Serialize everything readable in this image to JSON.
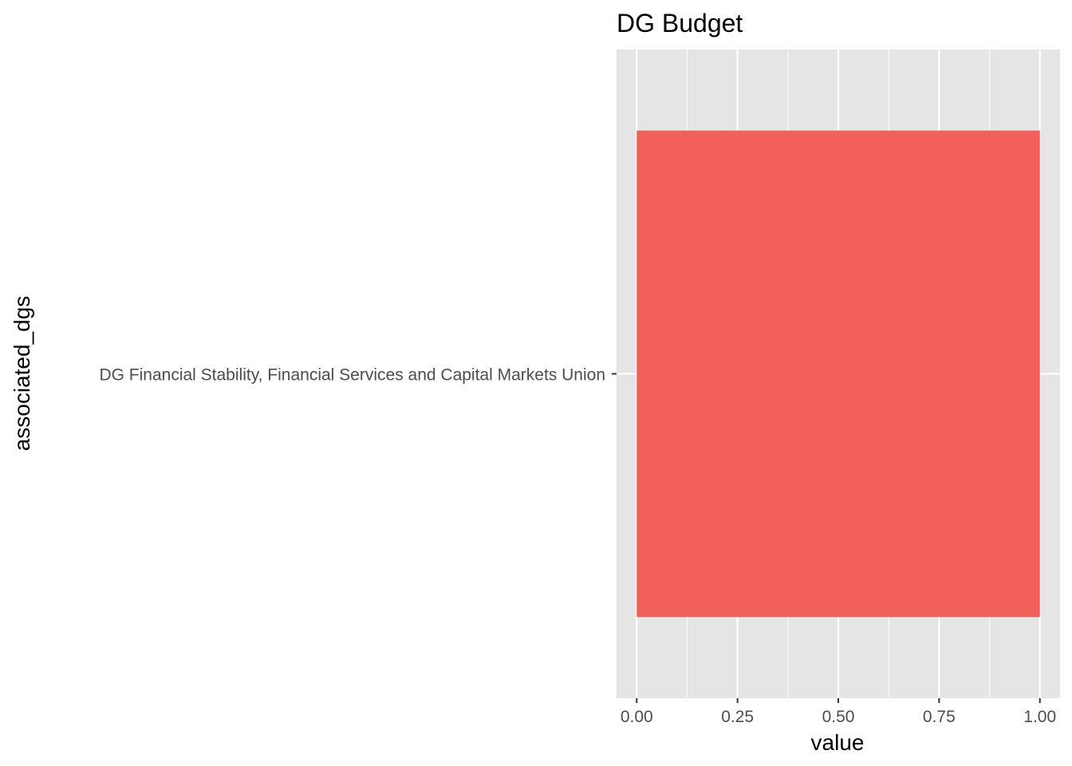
{
  "chart_data": {
    "type": "bar",
    "orientation": "horizontal",
    "title": "DG Budget",
    "xlabel": "value",
    "ylabel": "associated_dgs",
    "categories": [
      "DG Financial Stability, Financial Services and Capital Markets Union"
    ],
    "values": [
      1
    ],
    "xlim": [
      -0.05,
      1.05
    ],
    "xticks": [
      0,
      0.25,
      0.5,
      0.75,
      1
    ],
    "xtick_labels": [
      "0.00",
      "0.25",
      "0.50",
      "0.75",
      "1.00"
    ],
    "grid": true,
    "colors": {
      "panel_background": "#e5e5e5",
      "grid": "#ffffff",
      "bar": "#f2605b",
      "tick_text": "#4d4d4d",
      "tick_mark": "#333333"
    }
  }
}
